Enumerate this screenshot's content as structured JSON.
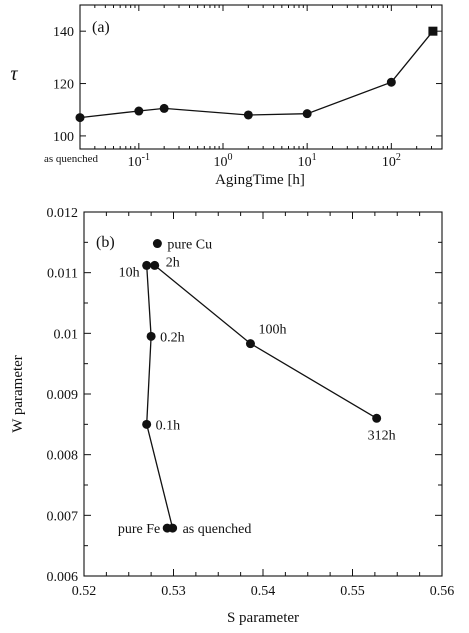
{
  "chart_data": [
    {
      "panel_label": "(a)",
      "type": "line",
      "xlabel": "AgingTime [h]",
      "ylabel": "τ",
      "x_scale": "log",
      "xlim": [
        0.02,
        400
      ],
      "ylim": [
        95,
        150
      ],
      "x_ticks": [
        {
          "value": 0.1,
          "base": "10",
          "exp": "-1"
        },
        {
          "value": 1,
          "base": "10",
          "exp": "0"
        },
        {
          "value": 10,
          "base": "10",
          "exp": "1"
        },
        {
          "value": 100,
          "base": "10",
          "exp": "2"
        }
      ],
      "y_ticks": [
        100,
        120,
        140
      ],
      "extra_label": "as quenched",
      "series": [
        {
          "points": [
            {
              "x": 0.02,
              "y": 107,
              "marker": "circle"
            },
            {
              "x": 0.1,
              "y": 109.5,
              "marker": "circle"
            },
            {
              "x": 0.2,
              "y": 110.5,
              "marker": "circle"
            },
            {
              "x": 2,
              "y": 108,
              "marker": "circle"
            },
            {
              "x": 10,
              "y": 108.5,
              "marker": "circle"
            },
            {
              "x": 100,
              "y": 120.5,
              "marker": "circle"
            },
            {
              "x": 312,
              "y": 140,
              "marker": "square"
            }
          ]
        }
      ]
    },
    {
      "panel_label": "(b)",
      "type": "scatter",
      "xlabel": "S parameter",
      "ylabel": "W parameter",
      "xlim": [
        0.52,
        0.56
      ],
      "ylim": [
        0.006,
        0.012
      ],
      "x_ticks": [
        "0.52",
        "0.53",
        "0.54",
        "0.55",
        "0.56"
      ],
      "y_ticks": [
        "0.006",
        "0.007",
        "0.008",
        "0.009",
        "0.01",
        "0.011",
        "0.012"
      ],
      "x_tick_values": [
        0.52,
        0.53,
        0.54,
        0.55,
        0.56
      ],
      "y_tick_values": [
        0.006,
        0.007,
        0.008,
        0.009,
        0.01,
        0.011,
        0.012
      ],
      "path": [
        {
          "label": "as quenched",
          "x": 0.5299,
          "y": 0.00679
        },
        {
          "label": "0.1h",
          "x": 0.527,
          "y": 0.0085
        },
        {
          "label": "0.2h",
          "x": 0.5275,
          "y": 0.00995
        },
        {
          "label": "10h",
          "x": 0.527,
          "y": 0.01112
        },
        {
          "label": "2h",
          "x": 0.5279,
          "y": 0.01112
        },
        {
          "label": "100h",
          "x": 0.5386,
          "y": 0.00983
        },
        {
          "label": "312h",
          "x": 0.5527,
          "y": 0.0086
        }
      ],
      "references": [
        {
          "label": "pure Cu",
          "x": 0.5282,
          "y": 0.01148
        },
        {
          "label": "pure Fe",
          "x": 0.5293,
          "y": 0.00679
        }
      ]
    }
  ]
}
